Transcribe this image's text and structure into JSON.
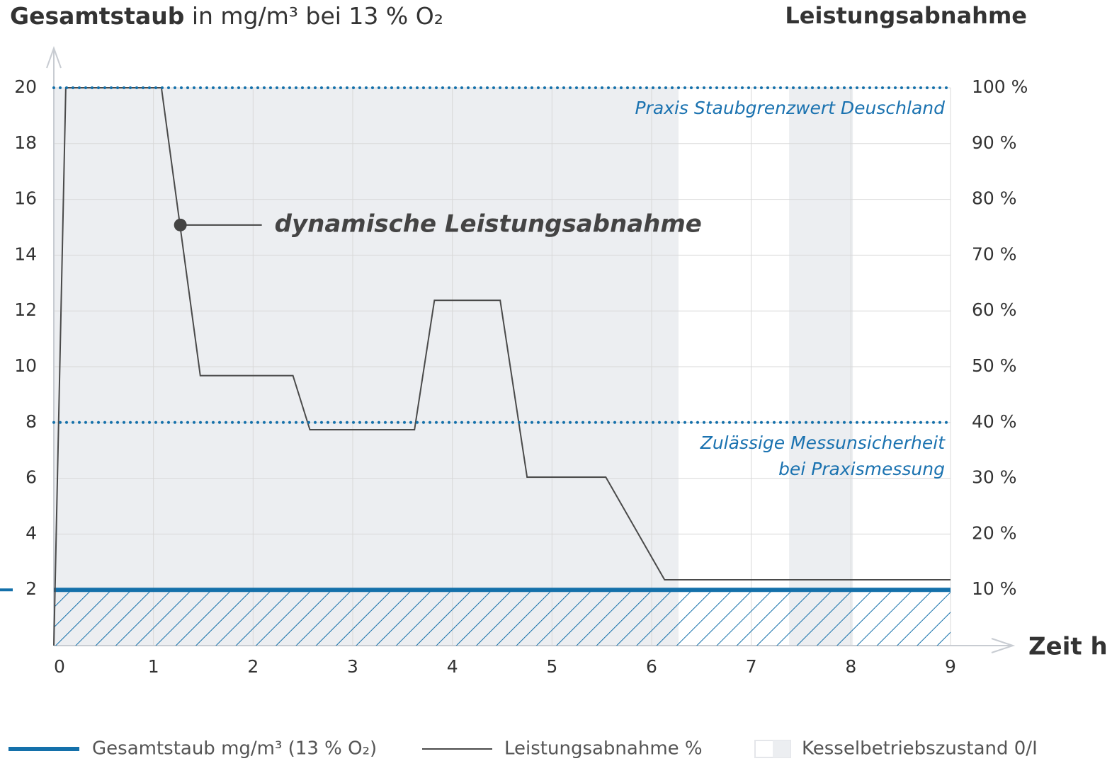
{
  "chart_data": {
    "type": "line",
    "title": {
      "bold": "Gesamtstaub",
      "rest": "in mg/m³ bei 13 % O₂"
    },
    "y2_label": "Leistungsabnahme",
    "x_label": "Zeit h",
    "xlim": [
      0,
      9
    ],
    "xticks": [
      0,
      1,
      2,
      3,
      4,
      5,
      6,
      7,
      8,
      9
    ],
    "ylim": [
      0,
      20
    ],
    "yticks": [
      2,
      4,
      6,
      8,
      10,
      12,
      14,
      16,
      18,
      20
    ],
    "y2lim": [
      0,
      100
    ],
    "y2ticks": [
      {
        "value": 10,
        "label": "10 %"
      },
      {
        "value": 20,
        "label": "20 %"
      },
      {
        "value": 30,
        "label": "30 %"
      },
      {
        "value": 40,
        "label": "40 %"
      },
      {
        "value": 50,
        "label": "50 %"
      },
      {
        "value": 60,
        "label": "60 %"
      },
      {
        "value": 70,
        "label": "70 %"
      },
      {
        "value": 80,
        "label": "80 %"
      },
      {
        "value": 90,
        "label": "90 %"
      },
      {
        "value": 100,
        "label": "100 %"
      }
    ],
    "grid": true,
    "series": [
      {
        "name": "Gesamtstaub mg/m³ (13 % O₂)",
        "color": "#1470aa",
        "x": [
          0,
          9
        ],
        "values": [
          2,
          2
        ],
        "hatch": true
      },
      {
        "name": "Leistungsabnahme %",
        "color": "#4a4a4a",
        "axis": "y2",
        "x": [
          0,
          0.12,
          1.08,
          1.47,
          2.4,
          2.57,
          3.62,
          3.82,
          4.48,
          4.75,
          5.54,
          6.13,
          9
        ],
        "values": [
          0,
          100,
          100,
          48.4,
          48.4,
          38.7,
          38.7,
          61.9,
          61.9,
          30.2,
          30.2,
          11.8,
          11.8
        ]
      }
    ],
    "bands": {
      "name": "Kesselbetriebszustand 0/I",
      "color": "#eceef1",
      "ranges": [
        [
          0,
          6.27
        ],
        [
          7.38,
          8.02
        ]
      ]
    },
    "reference_lines": [
      {
        "value": 20,
        "label": [
          "Praxis Staubgrenzwert Deuschland"
        ]
      },
      {
        "value": 8,
        "label": [
          "Zulässige Messunsicherheit",
          "bei Praxismessung"
        ]
      }
    ],
    "annotation": {
      "text": "dynamische Leistungsabnahme",
      "x": 1.27,
      "y": 75.4
    }
  }
}
